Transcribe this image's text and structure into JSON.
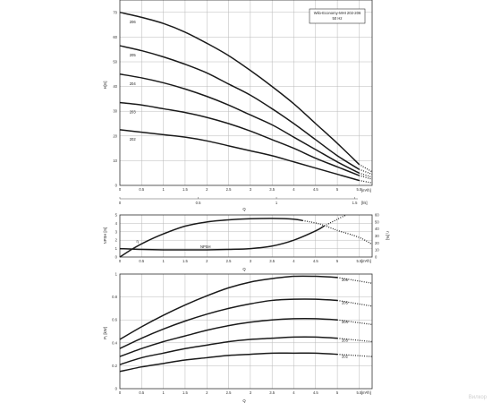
{
  "chart_data": [
    {
      "type": "line",
      "title": "Wilo-Economy-MHI 202-206",
      "subtitle": "50 Hz",
      "ylabel": "H[m]",
      "xlabel": "Q",
      "x_unit": "[m³/h]",
      "x_secondary_unit": "[l/s]",
      "xlim": [
        0,
        5.8
      ],
      "ylim": [
        0,
        75
      ],
      "x_ticks": [
        "0",
        "0.5",
        "1",
        "1.5",
        "2",
        "2.5",
        "3",
        "3.5",
        "4",
        "4.5",
        "5",
        "5.5"
      ],
      "y_ticks": [
        "0",
        "10",
        "20",
        "30",
        "40",
        "50",
        "60",
        "70"
      ],
      "x_secondary_ticks": [
        "0",
        "0.5",
        "1",
        "1.5"
      ],
      "grid": true,
      "series": [
        {
          "name": "206",
          "x": [
            0,
            0.5,
            1,
            1.5,
            2,
            2.5,
            3,
            3.5,
            4,
            4.5,
            5,
            5.5
          ],
          "y": [
            70,
            68,
            65.5,
            62,
            57.5,
            52.5,
            46.5,
            40,
            33,
            25,
            17,
            8.5
          ],
          "tail_x": [
            5.5,
            5.8
          ],
          "tail_y": [
            8.5,
            5.5
          ]
        },
        {
          "name": "205",
          "x": [
            0,
            0.5,
            1,
            1.5,
            2,
            2.5,
            3,
            3.5,
            4,
            4.5,
            5,
            5.5
          ],
          "y": [
            56.5,
            54.5,
            52,
            49,
            45.5,
            41,
            36.5,
            31,
            25,
            18.5,
            12,
            6.5
          ],
          "tail_x": [
            5.5,
            5.8
          ],
          "tail_y": [
            6.5,
            4.5
          ]
        },
        {
          "name": "204",
          "x": [
            0,
            0.5,
            1,
            1.5,
            2,
            2.5,
            3,
            3.5,
            4,
            4.5,
            5,
            5.5
          ],
          "y": [
            45,
            43.5,
            41.5,
            39,
            36,
            32.5,
            28.5,
            24.5,
            19.5,
            14.5,
            9.5,
            5
          ],
          "tail_x": [
            5.5,
            5.8
          ],
          "tail_y": [
            5,
            3.3
          ]
        },
        {
          "name": "203",
          "x": [
            0,
            0.5,
            1,
            1.5,
            2,
            2.5,
            3,
            3.5,
            4,
            4.5,
            5,
            5.5
          ],
          "y": [
            33.5,
            32.5,
            31,
            29.5,
            27.5,
            25,
            22,
            18.5,
            15,
            11,
            7.5,
            4
          ],
          "tail_x": [
            5.5,
            5.8
          ],
          "tail_y": [
            4,
            2.5
          ]
        },
        {
          "name": "202",
          "x": [
            0,
            0.5,
            1,
            1.5,
            2,
            2.5,
            3,
            3.5,
            4,
            4.5,
            5,
            5.5
          ],
          "y": [
            22.5,
            21.5,
            20.5,
            19.5,
            18,
            16,
            14,
            12,
            9.5,
            7,
            4.5,
            2
          ],
          "tail_x": [
            5.5,
            5.8
          ],
          "tail_y": [
            2,
            1
          ]
        }
      ]
    },
    {
      "type": "line",
      "xlabel": "Q",
      "x_unit": "[m³/h]",
      "ylabel_left": "NPSH [m]",
      "ylabel_right": "η [%]",
      "xlim": [
        0,
        5.8
      ],
      "ylim_left": [
        0,
        5
      ],
      "ylim_right": [
        0,
        60
      ],
      "x_ticks": [
        "0",
        "0.5",
        "1",
        "1.5",
        "2",
        "2.5",
        "3",
        "3.5",
        "4",
        "4.5",
        "5",
        "5.5"
      ],
      "y_ticks_left": [
        "0",
        "1",
        "2",
        "3",
        "4",
        "5"
      ],
      "y_ticks_right": [
        "0",
        "10",
        "20",
        "30",
        "40",
        "50",
        "60"
      ],
      "grid": true,
      "series": [
        {
          "name": "η",
          "axis": "right",
          "x": [
            0,
            0.3,
            0.6,
            1,
            1.5,
            2,
            2.5,
            3,
            3.5,
            4,
            4.2
          ],
          "y": [
            0,
            12,
            22,
            33,
            44,
            50,
            53,
            54.5,
            55,
            54,
            52
          ],
          "tail_x": [
            4.2,
            4.6,
            5,
            5.5,
            5.8
          ],
          "tail_y": [
            52,
            47,
            38,
            28,
            18
          ]
        },
        {
          "name": "NPSH",
          "axis": "left",
          "x": [
            0,
            0.5,
            1,
            1.5,
            2,
            2.5,
            3,
            3.5,
            4,
            4.5,
            4.7
          ],
          "y": [
            1.0,
            0.9,
            0.85,
            0.85,
            0.85,
            0.9,
            1.0,
            1.3,
            2.0,
            3.1,
            3.7
          ],
          "tail_x": [
            4.7,
            5.2
          ],
          "tail_y": [
            3.7,
            5
          ]
        }
      ]
    },
    {
      "type": "line",
      "xlabel": "Q",
      "x_unit": "[m³/h]",
      "ylabel": "P₁ [kW]",
      "xlim": [
        0,
        5.8
      ],
      "ylim": [
        0,
        1.0
      ],
      "x_ticks": [
        "0",
        "0.5",
        "1",
        "1.5",
        "2",
        "2.5",
        "3",
        "3.5",
        "4",
        "4.5",
        "5",
        "5.5"
      ],
      "y_ticks": [
        "0",
        "0.2",
        "0.4",
        "0.6",
        "0.8",
        "1"
      ],
      "grid": true,
      "series": [
        {
          "name": "206",
          "x": [
            0,
            0.5,
            1,
            1.5,
            2,
            2.5,
            3,
            3.5,
            4,
            4.5,
            5
          ],
          "y": [
            0.43,
            0.54,
            0.64,
            0.73,
            0.81,
            0.88,
            0.93,
            0.96,
            0.98,
            0.98,
            0.97
          ],
          "tail_x": [
            5,
            5.8
          ],
          "tail_y": [
            0.97,
            0.92
          ]
        },
        {
          "name": "205",
          "x": [
            0,
            0.5,
            1,
            1.5,
            2,
            2.5,
            3,
            3.5,
            4,
            4.5,
            5
          ],
          "y": [
            0.35,
            0.44,
            0.52,
            0.59,
            0.65,
            0.7,
            0.74,
            0.77,
            0.78,
            0.78,
            0.77
          ],
          "tail_x": [
            5,
            5.8
          ],
          "tail_y": [
            0.77,
            0.72
          ]
        },
        {
          "name": "204",
          "x": [
            0,
            0.5,
            1,
            1.5,
            2,
            2.5,
            3,
            3.5,
            4,
            4.5,
            5
          ],
          "y": [
            0.28,
            0.35,
            0.41,
            0.46,
            0.51,
            0.55,
            0.58,
            0.6,
            0.61,
            0.61,
            0.6
          ],
          "tail_x": [
            5,
            5.8
          ],
          "tail_y": [
            0.6,
            0.56
          ]
        },
        {
          "name": "203",
          "x": [
            0,
            0.5,
            1,
            1.5,
            2,
            2.5,
            3,
            3.5,
            4,
            4.5,
            5
          ],
          "y": [
            0.21,
            0.27,
            0.31,
            0.35,
            0.38,
            0.41,
            0.43,
            0.44,
            0.45,
            0.45,
            0.44
          ],
          "tail_x": [
            5,
            5.8
          ],
          "tail_y": [
            0.44,
            0.41
          ]
        },
        {
          "name": "202",
          "x": [
            0,
            0.5,
            1,
            1.5,
            2,
            2.5,
            3,
            3.5,
            4,
            4.5,
            5
          ],
          "y": [
            0.15,
            0.19,
            0.22,
            0.25,
            0.27,
            0.29,
            0.3,
            0.31,
            0.31,
            0.31,
            0.3
          ],
          "tail_x": [
            5,
            5.8
          ],
          "tail_y": [
            0.3,
            0.28
          ]
        }
      ]
    }
  ],
  "watermark": "Вилкор"
}
